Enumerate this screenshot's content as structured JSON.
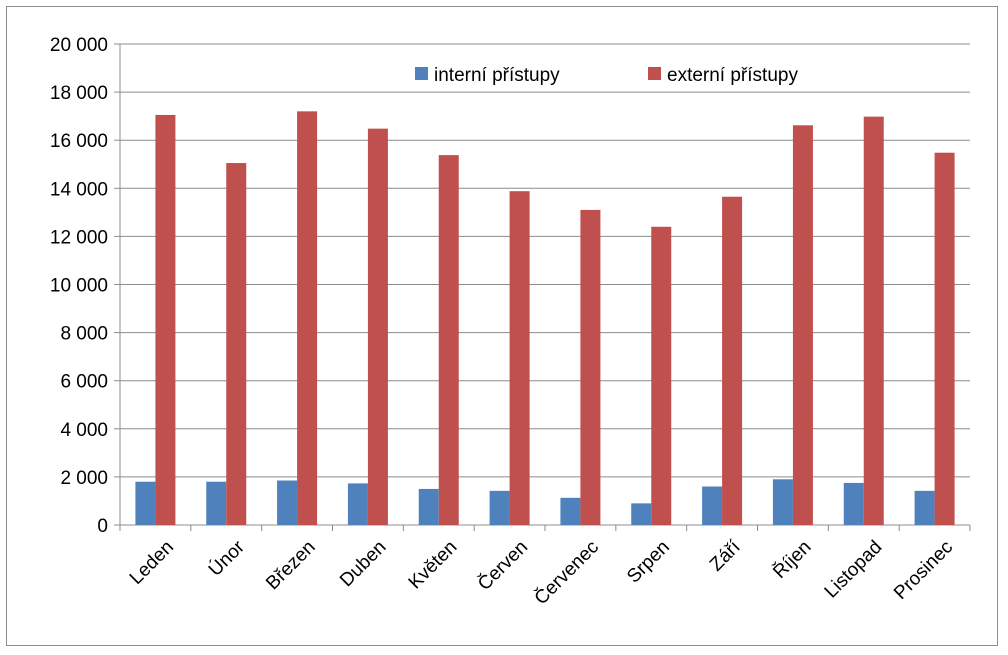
{
  "chart_data": {
    "type": "bar",
    "categories": [
      "Leden",
      "Únor",
      "Březen",
      "Duben",
      "Květen",
      "Červen",
      "Červenec",
      "Srpen",
      "Září",
      "Říjen",
      "Listopad",
      "Prosinec"
    ],
    "series": [
      {
        "name": "interní přístupy",
        "color": "#4f81bd",
        "values": [
          1800,
          1800,
          1850,
          1730,
          1500,
          1420,
          1130,
          900,
          1600,
          1900,
          1750,
          1420
        ]
      },
      {
        "name": "externí přístupy",
        "color": "#c0504d",
        "values": [
          17050,
          15050,
          17200,
          16480,
          15380,
          13880,
          13100,
          12400,
          13650,
          16620,
          16980,
          15480
        ]
      }
    ],
    "ylim": [
      0,
      20000
    ],
    "yticks": [
      "0",
      "2 000",
      "4 000",
      "6 000",
      "8 000",
      "10 000",
      "12 000",
      "14 000",
      "16 000",
      "18 000",
      "20 000"
    ],
    "ytick_values": [
      0,
      2000,
      4000,
      6000,
      8000,
      10000,
      12000,
      14000,
      16000,
      18000,
      20000
    ],
    "grid": true,
    "legend_position": "top-right",
    "title": "",
    "xlabel": "",
    "ylabel": ""
  }
}
